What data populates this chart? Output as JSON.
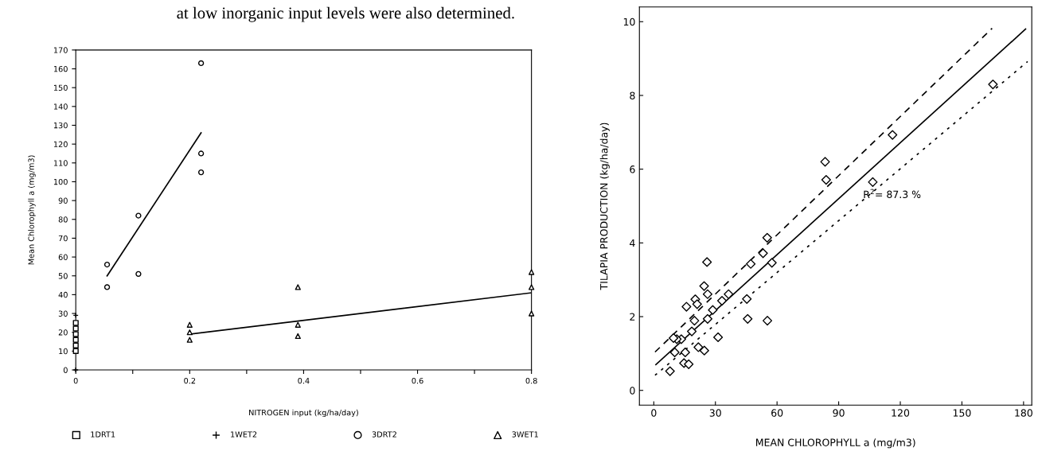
{
  "chart_data": [
    {
      "type": "scatter",
      "xlabel": "NITROGEN input (kg/ha/day)",
      "ylabel": "Mean Chlorophyll a (mg/m3)",
      "annotations": [
        "at low inorganic input levels were also determined."
      ],
      "xlim": [
        0,
        0.8
      ],
      "xticks": [
        0,
        {
          "value": 0.1,
          "label": null
        },
        0.2,
        {
          "value": 0.3,
          "label": null
        },
        0.4,
        {
          "value": 0.5,
          "label": null
        },
        0.6,
        {
          "value": 0.7,
          "label": null
        },
        0.8
      ],
      "ylim": [
        0,
        170
      ],
      "yticks": [
        0,
        10,
        20,
        30,
        40,
        50,
        60,
        70,
        80,
        90,
        100,
        110,
        120,
        130,
        140,
        150,
        160,
        170
      ],
      "legend": "bottom",
      "grid": false,
      "series": [
        {
          "name": "1DRT1",
          "color": "#000000",
          "marker": "square",
          "x": [
            0,
            0,
            0,
            0,
            0,
            0
          ],
          "values": [
            10,
            13,
            16,
            19,
            22,
            25
          ]
        },
        {
          "name": "1WET2",
          "color": "#000000",
          "marker": "cross",
          "x": [
            0,
            0
          ],
          "values": [
            0,
            29
          ]
        },
        {
          "name": "3DRT2",
          "color": "#000000",
          "marker": "circle",
          "x": [
            0.055,
            0.055,
            0.11,
            0.11,
            0.22,
            0.22,
            0.22
          ],
          "values": [
            56,
            44,
            82,
            51,
            163,
            115,
            105
          ]
        },
        {
          "name": "3WET1",
          "color": "#000000",
          "marker": "triangle",
          "x": [
            0.2,
            0.2,
            0.2,
            0.39,
            0.39,
            0.39,
            0.8,
            0.8,
            0.8
          ],
          "values": [
            24,
            20,
            16,
            44,
            24,
            18,
            52,
            44,
            30
          ]
        },
        {
          "type": "line",
          "color": "#000000",
          "line_style": "solid",
          "marker": "none",
          "x": [
            0.055,
            0.22
          ],
          "values": [
            50,
            126
          ]
        },
        {
          "type": "line",
          "color": "#000000",
          "line_style": "solid",
          "marker": "none",
          "x": [
            0.2,
            0.8
          ],
          "values": [
            19,
            41
          ]
        }
      ]
    },
    {
      "type": "scatter",
      "xlabel": "MEAN CHLOROPHYLL a (mg/m3)",
      "ylabel": "TILAPIA PRODUCTION (kg/ha/day)",
      "annotations": [
        "R$^{2}$= 87.3 %"
      ],
      "xlim": [
        -7,
        184
      ],
      "xticks": [
        0,
        30,
        60,
        90,
        120,
        150,
        180
      ],
      "ylim": [
        -0.4,
        10.4
      ],
      "yticks": [
        0,
        2,
        4,
        6,
        8,
        10
      ],
      "legend": false,
      "grid": false,
      "series": [
        {
          "color": "#000000",
          "marker": "diamond",
          "x": [
            55.2,
            53.2,
            47.2,
            57.5,
            25.9,
            24.5,
            26.2,
            20.2,
            21.1,
            15.9,
            45.3,
            45.7,
            55.3,
            31.3,
            26.2,
            28.7,
            33.2,
            36.4,
            19.8,
            18.5,
            13.4,
            11.2,
            9.6,
            10.2,
            15.3,
            14.7,
            17.0,
            21.7,
            24.6,
            7.9,
            83.4,
            83.9,
            116.2,
            106.6,
            165.1
          ],
          "values": [
            4.14,
            3.72,
            3.43,
            3.46,
            3.48,
            2.83,
            2.61,
            2.47,
            2.34,
            2.27,
            2.48,
            1.94,
            1.89,
            1.44,
            1.94,
            2.18,
            2.43,
            2.61,
            1.89,
            1.6,
            1.39,
            1.39,
            1.42,
            1.03,
            1.03,
            0.74,
            0.71,
            1.17,
            1.08,
            0.52,
            6.2,
            5.71,
            6.93,
            5.65,
            8.3
          ]
        },
        {
          "type": "line",
          "color": "#000000",
          "line_style": "solid",
          "marker": "none",
          "x": [
            1,
            181
          ],
          "values": [
            0.7,
            9.8
          ]
        },
        {
          "type": "line",
          "color": "#000000",
          "line_style": "dashed",
          "marker": "none",
          "x": [
            0.6,
            164.7
          ],
          "values": [
            1.04,
            9.82
          ]
        },
        {
          "type": "line",
          "color": "#000000",
          "line_style": "dotted",
          "marker": "none",
          "x": [
            0.6,
            182
          ],
          "values": [
            0.41,
            8.92
          ]
        }
      ]
    }
  ]
}
